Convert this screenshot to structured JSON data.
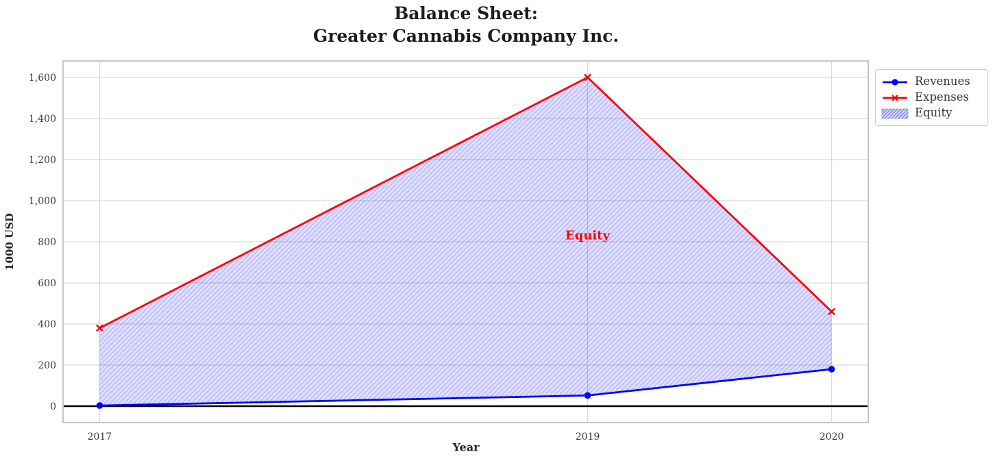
{
  "chart_data": {
    "type": "line",
    "title": "Balance Sheet:\nGreater Cannabis Company Inc.",
    "xlabel": "Year",
    "ylabel": "1000 USD",
    "x": [
      2017,
      2019,
      2020
    ],
    "series": [
      {
        "name": "Revenues",
        "values": [
          3,
          52,
          180
        ],
        "color": "#0000ff",
        "marker": "circle"
      },
      {
        "name": "Expenses",
        "values": [
          380,
          1600,
          460
        ],
        "color": "#ff0000",
        "marker": "x"
      }
    ],
    "equity_area": {
      "label": "Equity",
      "between": [
        "Revenues",
        "Expenses"
      ],
      "fill_color": "#0000ff",
      "fill_opacity": 0.12,
      "hatch": "//"
    },
    "annotation": {
      "text": "Equity",
      "x": 2019,
      "y": 830,
      "color": "#ff0000"
    },
    "xticks": {
      "values": [
        2017,
        2019,
        2020
      ],
      "labels": [
        "2017",
        "2019",
        "2020"
      ]
    },
    "yticks": {
      "values": [
        0,
        200,
        400,
        600,
        800,
        1000,
        1200,
        1400,
        1600
      ],
      "labels": [
        "0",
        "200",
        "400",
        "600",
        "800",
        "1,000",
        "1,200",
        "1,400",
        "1,600"
      ]
    },
    "xlim": [
      2016.85,
      2020.15
    ],
    "ylim": [
      -80,
      1680
    ],
    "grid": true,
    "grid_color": "#d9d9d9",
    "border_color": "#c6c6c6",
    "zero_line": {
      "y": 0,
      "color": "#000000"
    },
    "legend": {
      "position": "outside-right-top",
      "entries": [
        "Revenues",
        "Expenses",
        "Equity"
      ]
    }
  }
}
